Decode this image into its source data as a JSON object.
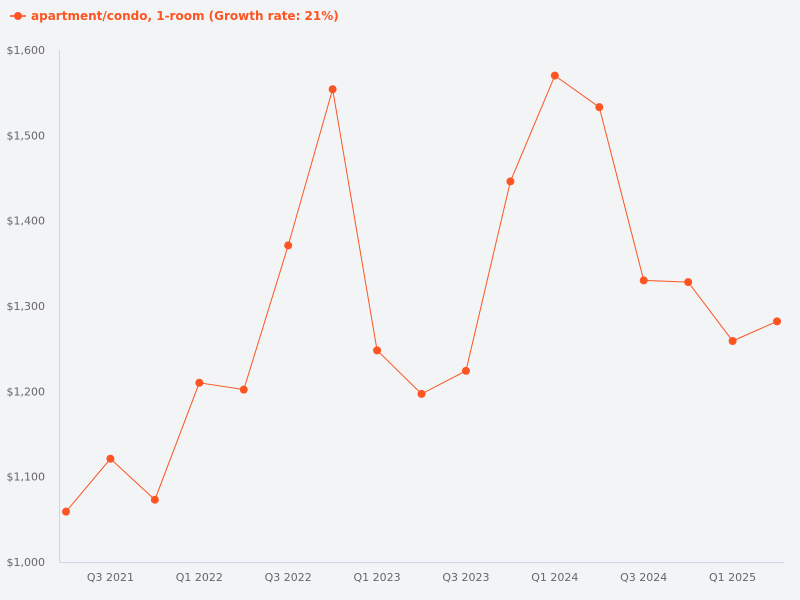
{
  "legend": {
    "label": "apartment/condo, 1-room (Growth rate: 21%)",
    "color": "#fc5522"
  },
  "chart_data": {
    "type": "line",
    "title": "",
    "xlabel": "",
    "ylabel": "",
    "ylim": [
      1000,
      1600
    ],
    "yticks": [
      "$1,000",
      "$1,100",
      "$1,200",
      "$1,300",
      "$1,400",
      "$1,500",
      "$1,600"
    ],
    "xtick_labels": [
      "Q3 2021",
      "Q1 2022",
      "Q3 2022",
      "Q1 2023",
      "Q3 2023",
      "Q1 2024",
      "Q3 2024",
      "Q1 2025"
    ],
    "x": [
      "Q2 2021",
      "Q3 2021",
      "Q4 2021",
      "Q1 2022",
      "Q2 2022",
      "Q3 2022",
      "Q4 2022",
      "Q1 2023",
      "Q2 2023",
      "Q3 2023",
      "Q4 2023",
      "Q1 2024",
      "Q2 2024",
      "Q3 2024",
      "Q4 2024",
      "Q1 2025",
      "Q2 2025"
    ],
    "series": [
      {
        "name": "apartment/condo, 1-room (Growth rate: 21%)",
        "color": "#fc5522",
        "values": [
          1059,
          1121,
          1073,
          1210,
          1202,
          1371,
          1554,
          1248,
          1197,
          1224,
          1446,
          1570,
          1533,
          1330,
          1328,
          1259,
          1282
        ]
      }
    ],
    "grid": false,
    "legend_position": "top-left"
  }
}
